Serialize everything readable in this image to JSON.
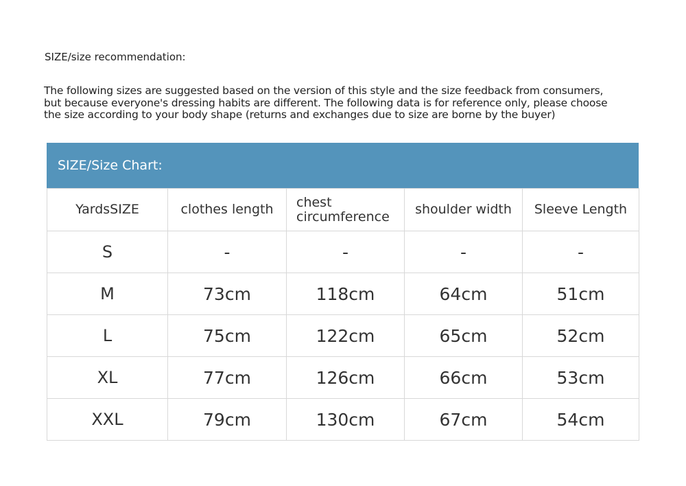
{
  "title": "SIZE/size recommendation:",
  "description_lines": [
    "The following sizes are suggested based on the version of this style and the size feedback from consumers,",
    "but because everyone's dressing habits are different. The following data is for reference only, please choose",
    "the size according to your body shape (returns and exchanges due to size are borne by the buyer)"
  ],
  "table": {
    "header_color": "#5494bb",
    "caption": "SIZE/Size Chart:",
    "columns": [
      "YardsSIZE",
      "clothes length",
      "chest circumference",
      "shoulder width",
      "Sleeve Length"
    ],
    "rows": [
      [
        "S",
        "-",
        "-",
        "-",
        "-"
      ],
      [
        "M",
        "73cm",
        "118cm",
        "64cm",
        "51cm"
      ],
      [
        "L",
        "75cm",
        "122cm",
        "65cm",
        "52cm"
      ],
      [
        "XL",
        "77cm",
        "126cm",
        "66cm",
        "53cm"
      ],
      [
        "XXL",
        "79cm",
        "130cm",
        "67cm",
        "54cm"
      ]
    ]
  }
}
